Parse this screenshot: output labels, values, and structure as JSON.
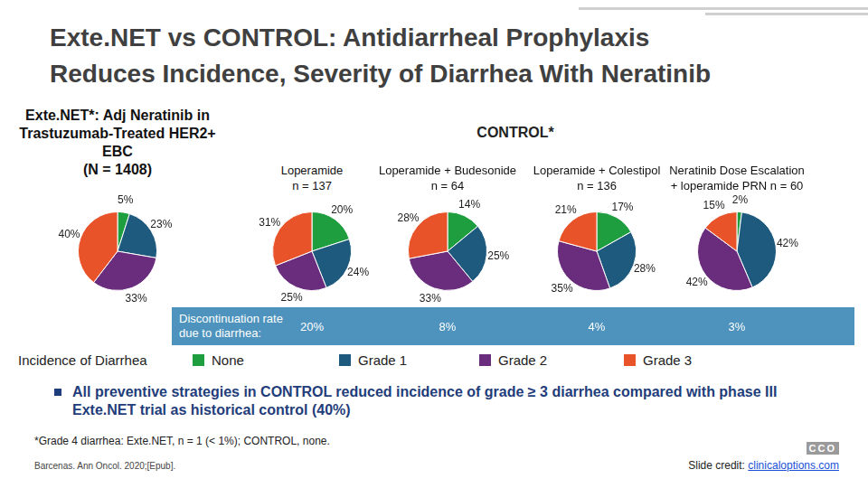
{
  "slide": {
    "title": [
      "Exte.NET vs CONTROL: Antidiarrheal Prophylaxis",
      "Reduces Incidence, Severity of Diarrhea With Neratinib"
    ],
    "group_title": "CONTROL*",
    "discontinuation_heading": [
      "Discontinuation rate",
      "due to diarrhea:"
    ],
    "legend_title": "Incidence of Diarrhea",
    "bullet": "All preventive strategies in CONTROL reduced incidence of grade ≥ 3 diarrhea compared with phase III Exte.NET trial as historical control (40%)",
    "footnote": "*Grade 4 diarrhea: Exte.NET, n = 1 (< 1%); CONTROL, none.",
    "citation": "Barcenas. Ann Oncol. 2020;[Epub].",
    "credit_label": "Slide credit:",
    "credit_link": "clinicaloptions.com",
    "logo": "CCO"
  },
  "chart_data": [
    {
      "type": "pie",
      "title": [
        "Exte.NET*: Adj Neratinib in",
        "Trastuzumab-Treated HER2+ EBC",
        "(N = 1408)"
      ],
      "categories": [
        "None",
        "Grade 1",
        "Grade 2",
        "Grade 3"
      ],
      "values": [
        5,
        23,
        33,
        40
      ],
      "value_labels": [
        "5%",
        "23%",
        "33%",
        "40%"
      ],
      "colors": [
        "#1e9e3e",
        "#1d5a7e",
        "#6a2d7e",
        "#e8532a"
      ],
      "data_labels": true
    },
    {
      "type": "pie",
      "title": [
        "Loperamide",
        "n = 137"
      ],
      "categories": [
        "None",
        "Grade 1",
        "Grade 2",
        "Grade 3"
      ],
      "values": [
        20,
        24,
        25,
        31
      ],
      "value_labels": [
        "20%",
        "24%",
        "25%",
        "31%"
      ],
      "colors": [
        "#1e9e3e",
        "#1d5a7e",
        "#6a2d7e",
        "#e8532a"
      ],
      "data_labels": true,
      "discontinuation_rate": "20%"
    },
    {
      "type": "pie",
      "title": [
        "Loperamide + Budesonide",
        "n = 64"
      ],
      "categories": [
        "None",
        "Grade 1",
        "Grade 2",
        "Grade 3"
      ],
      "values": [
        14,
        25,
        33,
        28
      ],
      "value_labels": [
        "14%",
        "25%",
        "33%",
        "28%"
      ],
      "colors": [
        "#1e9e3e",
        "#1d5a7e",
        "#6a2d7e",
        "#e8532a"
      ],
      "data_labels": true,
      "discontinuation_rate": "8%"
    },
    {
      "type": "pie",
      "title": [
        "Loperamide + Colestipol",
        "n = 136"
      ],
      "categories": [
        "None",
        "Grade 1",
        "Grade 2",
        "Grade 3"
      ],
      "values": [
        17,
        28,
        35,
        21
      ],
      "value_labels": [
        "17%",
        "28%",
        "35%",
        "21%"
      ],
      "colors": [
        "#1e9e3e",
        "#1d5a7e",
        "#6a2d7e",
        "#e8532a"
      ],
      "data_labels": true,
      "discontinuation_rate": "4%"
    },
    {
      "type": "pie",
      "title": [
        "Neratinib Dose Escalation",
        "+ loperamide PRN n = 60"
      ],
      "categories": [
        "None",
        "Grade 1",
        "Grade 2",
        "Grade 3"
      ],
      "values": [
        2,
        42,
        42,
        15
      ],
      "value_labels": [
        "2%",
        "42%",
        "42%",
        "15%"
      ],
      "colors": [
        "#1e9e3e",
        "#1d5a7e",
        "#6a2d7e",
        "#e8532a"
      ],
      "data_labels": true,
      "discontinuation_rate": "3%"
    }
  ]
}
